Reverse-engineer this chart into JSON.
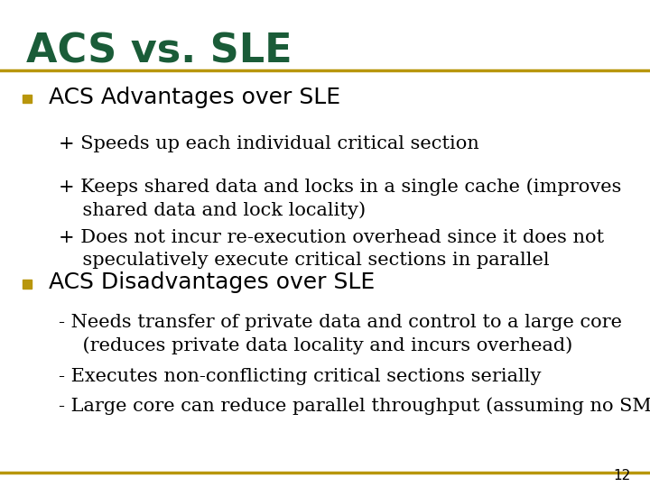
{
  "title": "ACS vs. SLE",
  "title_color": "#1a5c38",
  "title_fontsize": 32,
  "rule_color": "#b8960c",
  "background_color": "#ffffff",
  "bullet_color": "#b8960c",
  "bullet1_header": "ACS Advantages over SLE",
  "bullet1_items": [
    "+ Speeds up each individual critical section",
    "+ Keeps shared data and locks in a single cache (improves\n    shared data and lock locality)",
    "+ Does not incur re-execution overhead since it does not\n    speculatively execute critical sections in parallel"
  ],
  "bullet2_header": "ACS Disadvantages over SLE",
  "bullet2_items": [
    "- Needs transfer of private data and control to a large core\n    (reduces private data locality and incurs overhead)",
    "- Executes non-conflicting critical sections serially",
    "- Large core can reduce parallel throughput (assuming no SMT)"
  ],
  "header_fontsize": 18,
  "item_fontsize": 15,
  "page_number": "12",
  "text_color": "#000000",
  "header_color": "#000000"
}
